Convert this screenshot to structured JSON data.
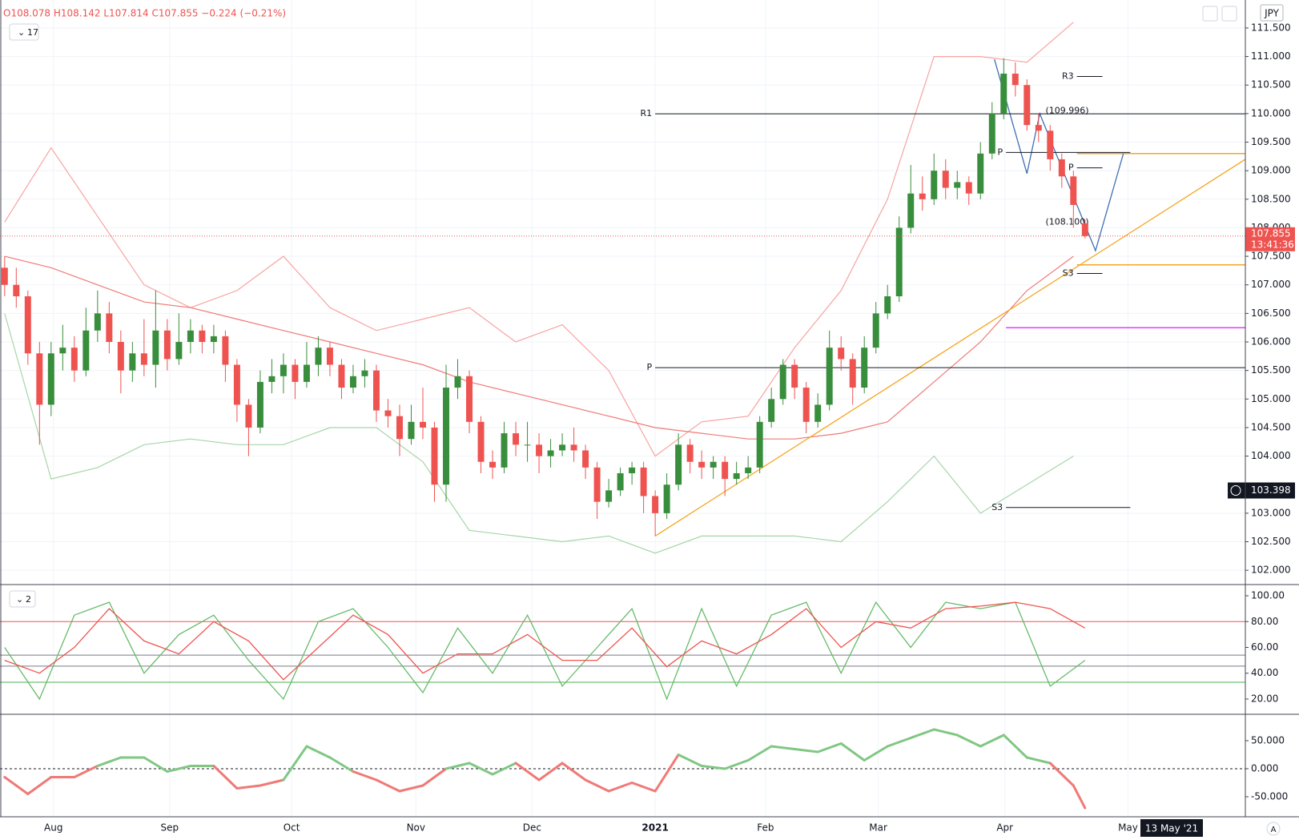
{
  "ui": {
    "ohlc": "O108.078 H108.142 L107.814 C107.855 −0.224 (−0.21%)",
    "main_count": "17",
    "stoch_count": "2",
    "currency": "JPY",
    "crosshair_date": "13 May '21",
    "auto": "A"
  },
  "chart_data": [
    {
      "type": "candlestick",
      "xlim": [
        -0.4,
        106.8
      ],
      "ylim": [
        101.75,
        111.99
      ],
      "grid": true,
      "up_color": "#388e3c",
      "down_color": "#ef5350",
      "xticks": [
        {
          "value": 4.2,
          "label": "Aug"
        },
        {
          "value": 14.2,
          "label": "Sep"
        },
        {
          "value": 24.7,
          "label": "Oct"
        },
        {
          "value": 35.4,
          "label": "Nov"
        },
        {
          "value": 45.4,
          "label": "Dec"
        },
        {
          "value": 56,
          "label": "2021"
        },
        {
          "value": 65.5,
          "label": "Feb"
        },
        {
          "value": 75.2,
          "label": "Mar"
        },
        {
          "value": 86.1,
          "label": "Apr"
        },
        {
          "value": 96.7,
          "label": "May"
        }
      ],
      "yticks": [
        {
          "value": 102,
          "label": "102.000"
        },
        {
          "value": 102.5,
          "label": "102.500"
        },
        {
          "value": 103,
          "label": "103.000"
        },
        {
          "value": 104,
          "label": "104.000"
        },
        {
          "value": 104.5,
          "label": "104.500"
        },
        {
          "value": 105,
          "label": "105.000"
        },
        {
          "value": 105.5,
          "label": "105.500"
        },
        {
          "value": 106,
          "label": "106.000"
        },
        {
          "value": 106.5,
          "label": "106.500"
        },
        {
          "value": 107,
          "label": "107.000"
        },
        {
          "value": 107.5,
          "label": "107.500"
        },
        {
          "value": 108,
          "label": "108.000"
        },
        {
          "value": 108.5,
          "label": "108.500"
        },
        {
          "value": 109,
          "label": "109.000"
        },
        {
          "value": 109.5,
          "label": "109.500"
        },
        {
          "value": 110,
          "label": "110.000"
        },
        {
          "value": 110.5,
          "label": "110.500"
        },
        {
          "value": 111,
          "label": "111.000"
        },
        {
          "value": 111.5,
          "label": "111.500"
        }
      ],
      "candles": [
        [
          107.3,
          107.5,
          106.8,
          107.0
        ],
        [
          107.0,
          107.3,
          106.6,
          106.8
        ],
        [
          106.8,
          106.9,
          105.6,
          105.8
        ],
        [
          105.8,
          106.0,
          104.2,
          104.9
        ],
        [
          104.9,
          106.0,
          104.7,
          105.8
        ],
        [
          105.8,
          106.3,
          105.5,
          105.9
        ],
        [
          105.9,
          106.1,
          105.3,
          105.5
        ],
        [
          105.5,
          106.6,
          105.4,
          106.2
        ],
        [
          106.2,
          106.9,
          106.0,
          106.5
        ],
        [
          106.5,
          106.7,
          105.8,
          106.0
        ],
        [
          106.0,
          106.2,
          105.1,
          105.5
        ],
        [
          105.5,
          106.0,
          105.3,
          105.8
        ],
        [
          105.8,
          106.4,
          105.4,
          105.6
        ],
        [
          105.6,
          106.9,
          105.2,
          106.2
        ],
        [
          106.2,
          106.4,
          105.5,
          105.7
        ],
        [
          105.7,
          106.5,
          105.6,
          106.0
        ],
        [
          106.0,
          106.4,
          105.8,
          106.2
        ],
        [
          106.2,
          106.3,
          105.8,
          106.0
        ],
        [
          106.0,
          106.3,
          105.8,
          106.1
        ],
        [
          106.1,
          106.2,
          105.3,
          105.6
        ],
        [
          105.6,
          105.7,
          104.6,
          104.9
        ],
        [
          104.9,
          105.0,
          104.0,
          104.5
        ],
        [
          104.5,
          105.5,
          104.4,
          105.3
        ],
        [
          105.3,
          105.7,
          105.1,
          105.4
        ],
        [
          105.4,
          105.8,
          105.1,
          105.6
        ],
        [
          105.6,
          105.7,
          105.0,
          105.3
        ],
        [
          105.3,
          106.0,
          105.2,
          105.6
        ],
        [
          105.6,
          106.1,
          105.4,
          105.9
        ],
        [
          105.9,
          106.0,
          105.4,
          105.6
        ],
        [
          105.6,
          105.7,
          105.0,
          105.2
        ],
        [
          105.2,
          105.6,
          105.1,
          105.4
        ],
        [
          105.4,
          105.7,
          105.2,
          105.5
        ],
        [
          105.5,
          105.6,
          104.6,
          104.8
        ],
        [
          104.8,
          105.0,
          104.5,
          104.7
        ],
        [
          104.7,
          104.9,
          104.0,
          104.3
        ],
        [
          104.3,
          104.9,
          104.2,
          104.6
        ],
        [
          104.6,
          105.2,
          104.3,
          104.5
        ],
        [
          104.5,
          104.6,
          103.2,
          103.5
        ],
        [
          103.5,
          105.6,
          103.2,
          105.2
        ],
        [
          105.2,
          105.7,
          105.0,
          105.4
        ],
        [
          105.4,
          105.5,
          104.4,
          104.6
        ],
        [
          104.6,
          104.7,
          103.7,
          103.9
        ],
        [
          103.9,
          104.1,
          103.6,
          103.8
        ],
        [
          103.8,
          104.6,
          103.7,
          104.4
        ],
        [
          104.4,
          104.6,
          104.0,
          104.2
        ],
        [
          104.2,
          104.6,
          103.9,
          104.2
        ],
        [
          104.2,
          104.4,
          103.7,
          104.0
        ],
        [
          104.0,
          104.3,
          103.8,
          104.1
        ],
        [
          104.1,
          104.4,
          104.0,
          104.2
        ],
        [
          104.2,
          104.5,
          103.9,
          104.1
        ],
        [
          104.1,
          104.2,
          103.6,
          103.8
        ],
        [
          103.8,
          103.9,
          102.9,
          103.2
        ],
        [
          103.2,
          103.6,
          103.1,
          103.4
        ],
        [
          103.4,
          103.8,
          103.3,
          103.7
        ],
        [
          103.7,
          103.9,
          103.5,
          103.8
        ],
        [
          103.8,
          103.9,
          103.0,
          103.3
        ],
        [
          103.3,
          103.4,
          102.6,
          103.0
        ],
        [
          103.0,
          103.7,
          102.9,
          103.5
        ],
        [
          103.5,
          104.4,
          103.4,
          104.2
        ],
        [
          104.2,
          104.3,
          103.7,
          103.9
        ],
        [
          103.9,
          104.1,
          103.6,
          103.8
        ],
        [
          103.8,
          104.0,
          103.6,
          103.9
        ],
        [
          103.9,
          104.0,
          103.3,
          103.6
        ],
        [
          103.6,
          103.9,
          103.5,
          103.7
        ],
        [
          103.7,
          104.0,
          103.6,
          103.8
        ],
        [
          103.8,
          104.7,
          103.7,
          104.6
        ],
        [
          104.6,
          105.2,
          104.5,
          105.0
        ],
        [
          105.0,
          105.7,
          104.9,
          105.6
        ],
        [
          105.6,
          105.7,
          105.0,
          105.2
        ],
        [
          105.2,
          105.3,
          104.4,
          104.6
        ],
        [
          104.6,
          105.1,
          104.5,
          104.9
        ],
        [
          104.9,
          106.2,
          104.8,
          105.9
        ],
        [
          105.9,
          106.1,
          105.5,
          105.7
        ],
        [
          105.7,
          105.8,
          104.9,
          105.2
        ],
        [
          105.2,
          106.1,
          105.1,
          105.9
        ],
        [
          105.9,
          106.7,
          105.8,
          106.5
        ],
        [
          106.5,
          107.0,
          106.4,
          106.8
        ],
        [
          106.8,
          108.2,
          106.7,
          108.0
        ],
        [
          108.0,
          109.1,
          107.9,
          108.6
        ],
        [
          108.6,
          108.9,
          108.3,
          108.5
        ],
        [
          108.5,
          109.3,
          108.4,
          109.0
        ],
        [
          109.0,
          109.2,
          108.5,
          108.7
        ],
        [
          108.7,
          109.0,
          108.5,
          108.8
        ],
        [
          108.8,
          108.9,
          108.4,
          108.6
        ],
        [
          108.6,
          109.5,
          108.5,
          109.3
        ],
        [
          109.3,
          110.2,
          109.2,
          110.0
        ],
        [
          110.0,
          110.97,
          109.9,
          110.7
        ],
        [
          110.7,
          110.9,
          110.3,
          110.5
        ],
        [
          110.5,
          110.6,
          109.7,
          109.8
        ],
        [
          109.8,
          110.0,
          109.5,
          109.7
        ],
        [
          109.7,
          109.8,
          109.0,
          109.2
        ],
        [
          109.2,
          109.3,
          108.7,
          108.9
        ],
        [
          108.9,
          109.0,
          108.0,
          108.4
        ],
        [
          108.078,
          108.142,
          107.814,
          107.855
        ]
      ],
      "line_x": [
        0,
        4,
        8,
        12,
        16,
        20,
        24,
        28,
        32,
        36,
        40,
        44,
        48,
        52,
        56,
        60,
        64,
        68,
        72,
        76,
        80,
        84,
        88,
        92
      ],
      "series": [
        {
          "color": "#f7a3a0",
          "values": [
            108.1,
            109.4,
            108.2,
            107.0,
            106.6,
            106.9,
            107.5,
            106.6,
            106.2,
            106.4,
            106.6,
            106.0,
            106.3,
            105.5,
            104.0,
            104.6,
            104.7,
            105.9,
            106.9,
            108.5,
            111.0,
            111.0,
            110.9,
            111.6
          ]
        },
        {
          "color": "#a5d6a7",
          "values": [
            106.5,
            103.6,
            103.8,
            104.2,
            104.3,
            104.2,
            104.2,
            104.5,
            104.5,
            103.9,
            102.7,
            102.6,
            102.5,
            102.6,
            102.3,
            102.6,
            102.6,
            102.6,
            102.5,
            103.2,
            104.0,
            103.0,
            103.5,
            104.0
          ]
        },
        {
          "color": "#ef7a76",
          "values": [
            107.5,
            107.3,
            107.0,
            106.7,
            106.6,
            106.4,
            106.2,
            106.0,
            105.8,
            105.6,
            105.3,
            105.1,
            104.9,
            104.7,
            104.5,
            104.4,
            104.3,
            104.3,
            104.4,
            104.6,
            105.3,
            106.0,
            106.9,
            107.5
          ]
        }
      ],
      "levels": [
        {
          "label": "R1",
          "value": 109.996,
          "x": [
            56,
            106.8
          ],
          "color": "#131722"
        },
        {
          "label": "P",
          "value": 105.55,
          "x": [
            56,
            106.8
          ],
          "color": "#131722"
        },
        {
          "label": "R3",
          "value": 110.65,
          "x": [
            92.3,
            94.5
          ],
          "color": "#131722"
        },
        {
          "label": "P",
          "value": 109.32,
          "x": [
            86.2,
            96.9
          ],
          "color": "#131722"
        },
        {
          "label": "P",
          "value": 109.05,
          "x": [
            92.3,
            94.5
          ],
          "color": "#131722"
        },
        {
          "label": "S3",
          "value": 107.2,
          "x": [
            92.3,
            94.5
          ],
          "color": "#131722"
        },
        {
          "label": "S3",
          "value": 103.1,
          "x": [
            86.2,
            96.9
          ],
          "color": "#131722"
        }
      ],
      "bands": [
        {
          "value": 109.3,
          "x": [
            92.3,
            106.8
          ],
          "color": "#f5a623"
        },
        {
          "value": 107.35,
          "x": [
            92.3,
            106.8
          ],
          "color": "#f5a623"
        },
        {
          "value": 106.25,
          "x": [
            86.2,
            106.8
          ],
          "color": "#e040fb"
        }
      ],
      "annotations": [
        {
          "text": "(109.996)",
          "x": 89.6,
          "y": 110.05
        },
        {
          "text": "(108.100)",
          "x": 89.6,
          "y": 108.1
        }
      ],
      "trendlines": [
        {
          "color": "#f5a623",
          "x": [
            56,
            106.8
          ],
          "values": [
            102.6,
            109.2
          ]
        },
        {
          "color": "#3f6fb5",
          "x": [
            85.2,
            88,
            89.1,
            93.9,
            96.3
          ],
          "values": [
            110.95,
            108.95,
            110.0,
            107.6,
            109.3
          ]
        }
      ],
      "last_price": 107.855,
      "last_time": "13:41:36",
      "crosshair_price": 103.398
    },
    {
      "type": "line",
      "ylim": [
        8.2,
        108.7
      ],
      "yticks": [
        {
          "value": 20,
          "label": "20.00"
        },
        {
          "value": 40,
          "label": "40.00"
        },
        {
          "value": 60,
          "label": "60.00"
        },
        {
          "value": 80,
          "label": "80.00"
        },
        {
          "value": 100,
          "label": "100.00"
        }
      ],
      "line_x": [
        0,
        3,
        6,
        9,
        12,
        15,
        18,
        21,
        24,
        27,
        30,
        33,
        36,
        39,
        42,
        45,
        48,
        51,
        54,
        57,
        60,
        63,
        66,
        69,
        72,
        75,
        78,
        81,
        84,
        87,
        90,
        93
      ],
      "series": [
        {
          "color": "#66bb6a",
          "values": [
            60,
            20,
            85,
            95,
            40,
            70,
            85,
            50,
            20,
            80,
            90,
            60,
            25,
            75,
            40,
            85,
            30,
            60,
            90,
            20,
            90,
            30,
            85,
            95,
            40,
            95,
            60,
            95,
            90,
            95,
            30,
            50
          ]
        },
        {
          "color": "#ef5350",
          "values": [
            50,
            40,
            60,
            90,
            65,
            55,
            80,
            65,
            35,
            60,
            85,
            70,
            40,
            55,
            55,
            70,
            50,
            50,
            75,
            45,
            65,
            55,
            70,
            90,
            60,
            80,
            75,
            90,
            92,
            95,
            90,
            75
          ]
        }
      ],
      "levels": [
        {
          "value": 80,
          "color": "#ef5350"
        },
        {
          "value": 54,
          "color": "#787b86"
        },
        {
          "value": 45.5,
          "color": "#787b86"
        },
        {
          "value": 33,
          "color": "#4caf50"
        }
      ]
    },
    {
      "type": "momentum",
      "ylim": [
        -85.7,
        97.1
      ],
      "yticks": [
        {
          "value": -50,
          "label": "-50.000"
        },
        {
          "value": 0,
          "label": "0.000"
        },
        {
          "value": 50,
          "label": "50.000"
        }
      ],
      "up_color": "#81c784",
      "down_color": "#ef7a76",
      "x": [
        0,
        2,
        4,
        6,
        8,
        10,
        12,
        14,
        16,
        18,
        20,
        22,
        24,
        26,
        28,
        30,
        32,
        34,
        36,
        38,
        40,
        42,
        44,
        46,
        48,
        50,
        52,
        54,
        56,
        58,
        60,
        62,
        64,
        66,
        68,
        70,
        72,
        74,
        76,
        78,
        80,
        82,
        84,
        86,
        88,
        90,
        92,
        93
      ],
      "values": [
        -15,
        -45,
        -15,
        -15,
        5,
        20,
        20,
        -5,
        5,
        5,
        -35,
        -30,
        -20,
        40,
        20,
        -5,
        -20,
        -40,
        -30,
        0,
        10,
        -10,
        10,
        -20,
        10,
        -20,
        -40,
        -25,
        -40,
        25,
        5,
        0,
        15,
        40,
        35,
        30,
        45,
        15,
        40,
        55,
        70,
        60,
        40,
        60,
        20,
        10,
        -30,
        -70
      ],
      "zero_line": 0
    }
  ]
}
